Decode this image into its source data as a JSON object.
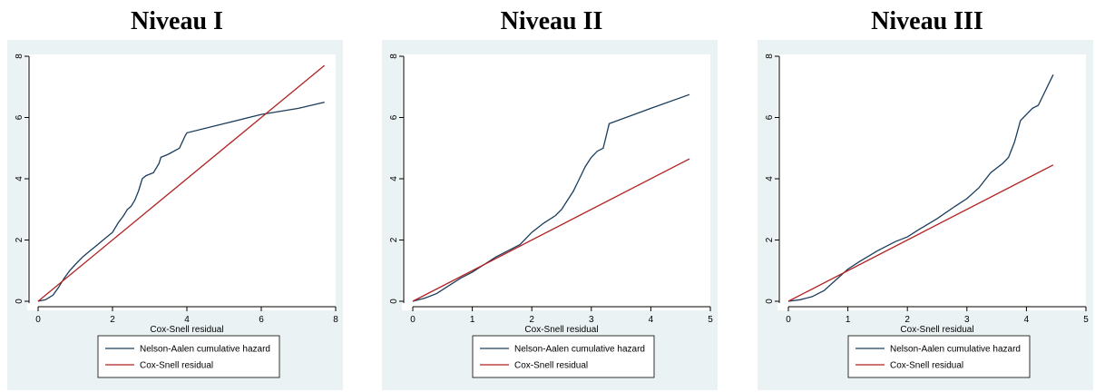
{
  "chart_data": [
    {
      "type": "line",
      "title": "Niveau I",
      "xlabel": "Cox-Snell residual",
      "ylabel": "",
      "xlim": [
        0,
        8
      ],
      "ylim": [
        0,
        8
      ],
      "xticks": [
        0,
        2,
        4,
        6,
        8
      ],
      "yticks": [
        0,
        2,
        4,
        6,
        8
      ],
      "grid": false,
      "legend_position": "bottom",
      "series": [
        {
          "name": "Nelson-Aalen cumulative hazard",
          "color": "#1a3d5c",
          "x": [
            0,
            0.2,
            0.4,
            0.55,
            0.7,
            0.85,
            1.0,
            1.2,
            1.4,
            1.6,
            1.8,
            2.0,
            2.15,
            2.3,
            2.4,
            2.5,
            2.6,
            2.7,
            2.8,
            2.9,
            3.1,
            3.25,
            3.3,
            3.5,
            3.8,
            3.95,
            4.0,
            5.0,
            6.0,
            7.0,
            7.7
          ],
          "y": [
            0,
            0.05,
            0.2,
            0.45,
            0.75,
            1.0,
            1.2,
            1.45,
            1.65,
            1.85,
            2.05,
            2.25,
            2.55,
            2.8,
            3.0,
            3.1,
            3.3,
            3.6,
            4.0,
            4.1,
            4.2,
            4.5,
            4.7,
            4.8,
            5.0,
            5.4,
            5.5,
            5.8,
            6.1,
            6.3,
            6.5
          ]
        },
        {
          "name": "Cox-Snell residual",
          "color": "#b22222",
          "x": [
            0,
            7.7
          ],
          "y": [
            0,
            7.7
          ]
        }
      ]
    },
    {
      "type": "line",
      "title": "Niveau II",
      "xlabel": "Cox-Snell residual",
      "ylabel": "",
      "xlim": [
        0,
        5
      ],
      "ylim": [
        0,
        8
      ],
      "xticks": [
        0,
        1,
        2,
        3,
        4,
        5
      ],
      "yticks": [
        0,
        2,
        4,
        6,
        8
      ],
      "grid": false,
      "legend_position": "bottom",
      "series": [
        {
          "name": "Nelson-Aalen cumulative hazard",
          "color": "#1a3d5c",
          "x": [
            0,
            0.2,
            0.4,
            0.6,
            0.8,
            1.0,
            1.2,
            1.4,
            1.6,
            1.8,
            2.0,
            2.2,
            2.4,
            2.5,
            2.6,
            2.7,
            2.8,
            2.9,
            3.0,
            3.1,
            3.2,
            3.25,
            3.3,
            4.0,
            4.65
          ],
          "y": [
            0,
            0.1,
            0.25,
            0.5,
            0.75,
            0.95,
            1.2,
            1.45,
            1.65,
            1.85,
            2.25,
            2.55,
            2.8,
            3.0,
            3.3,
            3.6,
            4.0,
            4.4,
            4.7,
            4.9,
            5.0,
            5.4,
            5.8,
            6.3,
            6.75
          ]
        },
        {
          "name": "Cox-Snell residual",
          "color": "#b22222",
          "x": [
            0,
            4.65
          ],
          "y": [
            0,
            4.65
          ]
        }
      ]
    },
    {
      "type": "line",
      "title": "Niveau III",
      "xlabel": "Cox-Snell residual",
      "ylabel": "",
      "xlim": [
        0,
        5
      ],
      "ylim": [
        0,
        8
      ],
      "xticks": [
        0,
        1,
        2,
        3,
        4,
        5
      ],
      "yticks": [
        0,
        2,
        4,
        6,
        8
      ],
      "grid": false,
      "legend_position": "bottom",
      "series": [
        {
          "name": "Nelson-Aalen cumulative hazard",
          "color": "#1a3d5c",
          "x": [
            0,
            0.2,
            0.4,
            0.6,
            0.8,
            1.0,
            1.2,
            1.5,
            1.8,
            2.0,
            2.2,
            2.5,
            2.8,
            3.0,
            3.2,
            3.4,
            3.6,
            3.7,
            3.8,
            3.9,
            4.0,
            4.1,
            4.2,
            4.3,
            4.45
          ],
          "y": [
            0,
            0.05,
            0.15,
            0.35,
            0.7,
            1.05,
            1.3,
            1.65,
            1.95,
            2.1,
            2.35,
            2.7,
            3.1,
            3.35,
            3.7,
            4.2,
            4.5,
            4.7,
            5.2,
            5.9,
            6.1,
            6.3,
            6.4,
            6.8,
            7.4
          ]
        },
        {
          "name": "Cox-Snell residual",
          "color": "#b22222",
          "x": [
            0,
            4.45
          ],
          "y": [
            0,
            4.45
          ]
        }
      ]
    }
  ]
}
